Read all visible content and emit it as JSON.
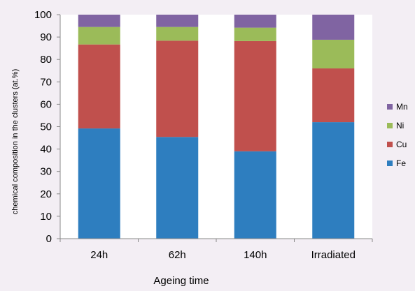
{
  "chart_data": {
    "type": "bar",
    "stacked": true,
    "categories": [
      "24h",
      "62h",
      "140h",
      "Irradiated"
    ],
    "series": [
      {
        "name": "Fe",
        "color": "#2e7ebf",
        "values": [
          49.2,
          45.4,
          39.0,
          52.0
        ]
      },
      {
        "name": "Cu",
        "color": "#c0504d",
        "values": [
          37.5,
          43.0,
          49.2,
          24.0
        ]
      },
      {
        "name": "Ni",
        "color": "#9bbb59",
        "values": [
          7.8,
          6.1,
          6.0,
          12.8
        ]
      },
      {
        "name": "Mn",
        "color": "#8064a2",
        "values": [
          5.5,
          5.5,
          5.8,
          11.2
        ]
      }
    ],
    "title": "",
    "xlabel": "Ageing time",
    "ylabel": "chemical composition in the clusters   (at.%)",
    "ylim": [
      0,
      100
    ],
    "yticks": [
      "0",
      "10",
      "20",
      "30",
      "40",
      "50",
      "60",
      "70",
      "80",
      "90",
      "100"
    ],
    "grid": false,
    "legend_position": "right",
    "legend_order": [
      "Mn",
      "Ni",
      "Cu",
      "Fe"
    ]
  }
}
